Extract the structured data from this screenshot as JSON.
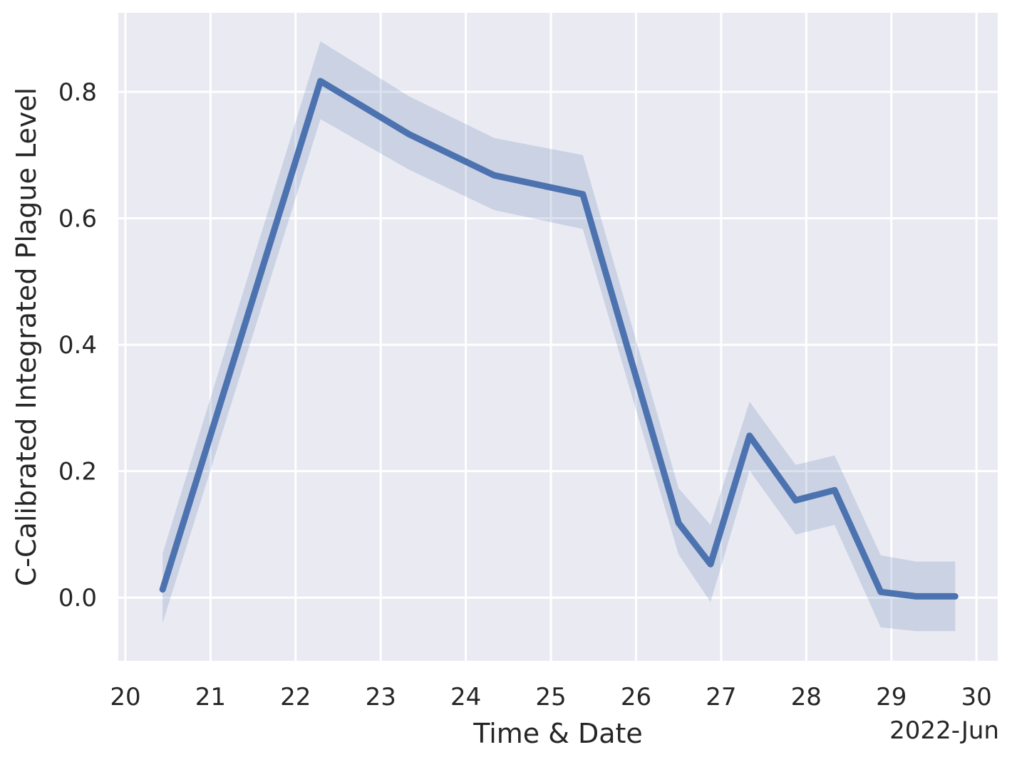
{
  "chart_data": {
    "type": "line",
    "title": "",
    "xlabel": "Time & Date",
    "ylabel": "C-Calibrated Integrated Plague Level",
    "x_offset_label": "2022-Jun",
    "x_ticks": [
      "20",
      "21",
      "22",
      "23",
      "24",
      "25",
      "26",
      "27",
      "28",
      "29",
      "30"
    ],
    "y_ticks": [
      "0.0",
      "0.2",
      "0.4",
      "0.6",
      "0.8"
    ],
    "xlim": [
      "2022-06-19 22:00",
      "2022-06-30 06:00"
    ],
    "ylim": [
      -0.1,
      0.925
    ],
    "grid": true,
    "legend": "none",
    "series": [
      {
        "x": [
          "2022-06-20 10:30",
          "2022-06-22 07:00",
          "2022-06-23 08:00",
          "2022-06-24 08:00",
          "2022-06-25 09:00",
          "2022-06-26 12:00",
          "2022-06-26 21:00",
          "2022-06-27 08:00",
          "2022-06-27 21:00",
          "2022-06-28 08:00",
          "2022-06-28 21:00",
          "2022-06-29 07:00",
          "2022-06-29 18:00"
        ],
        "y": [
          0.013,
          0.817,
          0.733,
          0.668,
          0.638,
          0.118,
          0.053,
          0.256,
          0.154,
          0.17,
          0.009,
          0.002,
          0.002
        ],
        "ci_lower": [
          -0.04,
          0.757,
          0.677,
          0.613,
          0.583,
          0.068,
          -0.007,
          0.201,
          0.1,
          0.115,
          -0.047,
          -0.053,
          -0.053
        ],
        "ci_upper": [
          0.07,
          0.88,
          0.793,
          0.727,
          0.7,
          0.173,
          0.115,
          0.31,
          0.21,
          0.225,
          0.067,
          0.057,
          0.057
        ]
      }
    ],
    "colors": {
      "plot_background": "#eaeaf2",
      "grid": "#ffffff",
      "line": "#4c72b0",
      "band": "#4c72b0",
      "text": "#262626"
    }
  }
}
